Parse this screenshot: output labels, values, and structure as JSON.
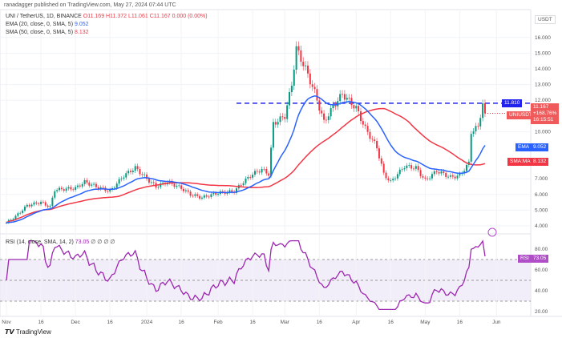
{
  "header": {
    "publisher": "ranadagger published on TradingView.com, May 27, 2024 07:44 UTC",
    "symbol": "UNI / TetherUS, 1D, BINANCE",
    "o": "O11.169",
    "h": "H11.372",
    "l": "L11.061",
    "c": "C11.167",
    "change": "0.000 (0.00%)",
    "ema_label": "EMA (20, close, 0, SMA, 5)",
    "ema_value": "9.052",
    "sma_label": "SMA (50, close, 0, SMA, 5)",
    "sma_value": "8.132",
    "rsi_label": "RSI (14, close, SMA, 14, 2)",
    "rsi_value": "73.05",
    "rsi_extra": "∅ ∅ ∅ ∅"
  },
  "currency": "USDT",
  "labels": {
    "resistance": "11.810",
    "symbol_tag": "UNIUSDT",
    "price": "11.167",
    "pct": "+168.76%",
    "timer": "16:15:51",
    "ema_tag": "EMA",
    "ema": "9.052",
    "sma_tag": "SMA:MA",
    "sma": "8.132",
    "rsi_tag": "RSI",
    "rsi": "73.05"
  },
  "footer": "TradingView",
  "colors": {
    "up": "#089981",
    "down": "#f23645",
    "ema": "#2962ff",
    "sma": "#f23645",
    "rsi": "#9c27b0"
  },
  "chart_data": {
    "type": "candlestick",
    "title": "UNI / TetherUS, 1D, BINANCE",
    "price_ticks": [
      "16.000",
      "15.000",
      "14.000",
      "13.000",
      "12.000",
      "10.000",
      "7.000",
      "6.000",
      "5.000",
      "4.000"
    ],
    "rsi_ticks": [
      "80.00",
      "60.00",
      "40.00",
      "20.00"
    ],
    "x_ticks": [
      "Nov",
      "16",
      "Dec",
      "16",
      "2024",
      "16",
      "Feb",
      "16",
      "Mar",
      "16",
      "Apr",
      "16",
      "May",
      "16",
      "Jun"
    ],
    "resistance": 11.81,
    "closes": [
      [
        "2023-11-01",
        4.2
      ],
      [
        "2023-11-05",
        4.6
      ],
      [
        "2023-11-10",
        5.3
      ],
      [
        "2023-11-16",
        5.5
      ],
      [
        "2023-11-20",
        5.2
      ],
      [
        "2023-11-22",
        6.3
      ],
      [
        "2023-12-01",
        6.4
      ],
      [
        "2023-12-05",
        6.8
      ],
      [
        "2023-12-10",
        6.5
      ],
      [
        "2023-12-16",
        6.2
      ],
      [
        "2023-12-22",
        7.2
      ],
      [
        "2023-12-27",
        7.7
      ],
      [
        "2024-01-01",
        7.0
      ],
      [
        "2024-01-05",
        6.5
      ],
      [
        "2024-01-10",
        6.8
      ],
      [
        "2024-01-16",
        6.4
      ],
      [
        "2024-01-20",
        6.0
      ],
      [
        "2024-01-25",
        5.8
      ],
      [
        "2024-02-01",
        6.1
      ],
      [
        "2024-02-08",
        6.2
      ],
      [
        "2024-02-12",
        6.8
      ],
      [
        "2024-02-16",
        7.3
      ],
      [
        "2024-02-20",
        7.6
      ],
      [
        "2024-02-23",
        7.3
      ],
      [
        "2024-02-25",
        10.5
      ],
      [
        "2024-03-01",
        11.0
      ],
      [
        "2024-03-04",
        13.0
      ],
      [
        "2024-03-06",
        15.3
      ],
      [
        "2024-03-10",
        14.0
      ],
      [
        "2024-03-14",
        12.5
      ],
      [
        "2024-03-18",
        10.6
      ],
      [
        "2024-03-22",
        11.6
      ],
      [
        "2024-03-26",
        12.4
      ],
      [
        "2024-04-01",
        11.5
      ],
      [
        "2024-04-05",
        10.2
      ],
      [
        "2024-04-10",
        9.0
      ],
      [
        "2024-04-13",
        7.3
      ],
      [
        "2024-04-16",
        6.8
      ],
      [
        "2024-04-22",
        7.8
      ],
      [
        "2024-04-27",
        7.7
      ],
      [
        "2024-05-01",
        6.9
      ],
      [
        "2024-05-06",
        7.5
      ],
      [
        "2024-05-12",
        7.1
      ],
      [
        "2024-05-16",
        7.2
      ],
      [
        "2024-05-20",
        8.0
      ],
      [
        "2024-05-21",
        10.0
      ],
      [
        "2024-05-24",
        10.3
      ],
      [
        "2024-05-26",
        11.8
      ],
      [
        "2024-05-27",
        11.17
      ]
    ],
    "ema_period": 20,
    "sma_period": 50,
    "rsi_period": 14,
    "rsi_last": 73.05
  }
}
